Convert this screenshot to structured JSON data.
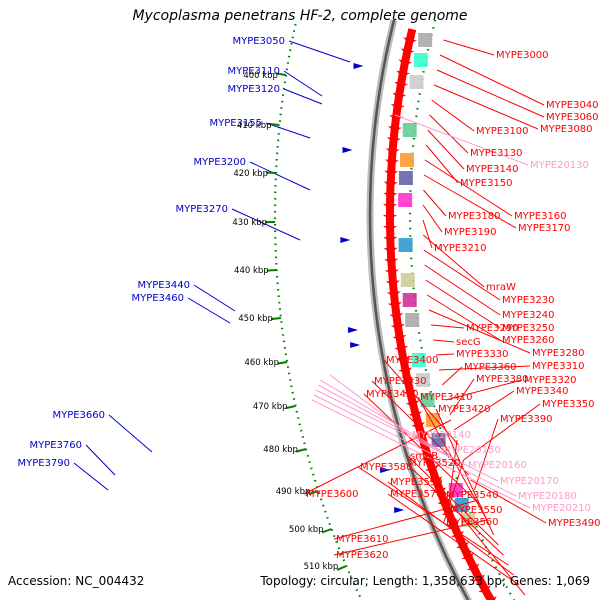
{
  "title": "Mycoplasma penetrans HF-2, complete genome",
  "footer": {
    "accession": "Accession: NC_004432",
    "summary": "Topology: circular; Length: 1,358,633 bp; Genes: 1,069"
  },
  "colors": {
    "forward_gene": "#ff0000",
    "reverse_gene": "#0000cc",
    "rna_gene": "#ff99cc",
    "kbp_ring": "#008000",
    "backbone": "#888888"
  },
  "kbp_ticks": [
    "400 kbp",
    "410 kbp",
    "420 kbp",
    "430 kbp",
    "440 kbp",
    "450 kbp",
    "460 kbp",
    "470 kbp",
    "480 kbp",
    "490 kbp",
    "500 kbp",
    "510 kbp"
  ],
  "labels_left": [
    "MYPE3050",
    "MYPE3110",
    "MYPE3120",
    "MYPE3155",
    "MYPE3200",
    "MYPE3270",
    "MYPE3440",
    "MYPE3460",
    "MYPE3660",
    "MYPE3760",
    "MYPE3790"
  ],
  "labels_right_red": [
    "MYPE3000",
    "MYPE3040",
    "MYPE3060",
    "MYPE3080",
    "MYPE3100",
    "MYPE3130",
    "MYPE3140",
    "MYPE3150",
    "MYPE3160",
    "MYPE3170",
    "MYPE3180",
    "MYPE3190",
    "MYPE3210",
    "mraW",
    "MYPE3230",
    "MYPE3240",
    "MYPE3250",
    "MYPE3260",
    "MYPE3280",
    "MYPE3290",
    "secG",
    "MYPE3330",
    "MYPE3310",
    "MYPE3360",
    "MYPE3320",
    "MYPE3380",
    "MYPE3340",
    "MYPE3400",
    "MYPE3350",
    "MYPE3430",
    "MYPE3390",
    "MYPE3450",
    "MYPE3410",
    "MYPE3420",
    "smpB",
    "MYPE3520",
    "MYPE3580",
    "MYPE3590",
    "MYPE3570",
    "MYPE3540",
    "MYPE3600",
    "MYPE3550",
    "MYPE3560",
    "MYPE3490",
    "MYPE3610",
    "MYPE3620"
  ],
  "labels_right_pink": [
    "MYPE20130",
    "MYPE20140",
    "MYPE20150",
    "MYPE20160",
    "MYPE20170",
    "MYPE20180",
    "MYPE20210"
  ]
}
